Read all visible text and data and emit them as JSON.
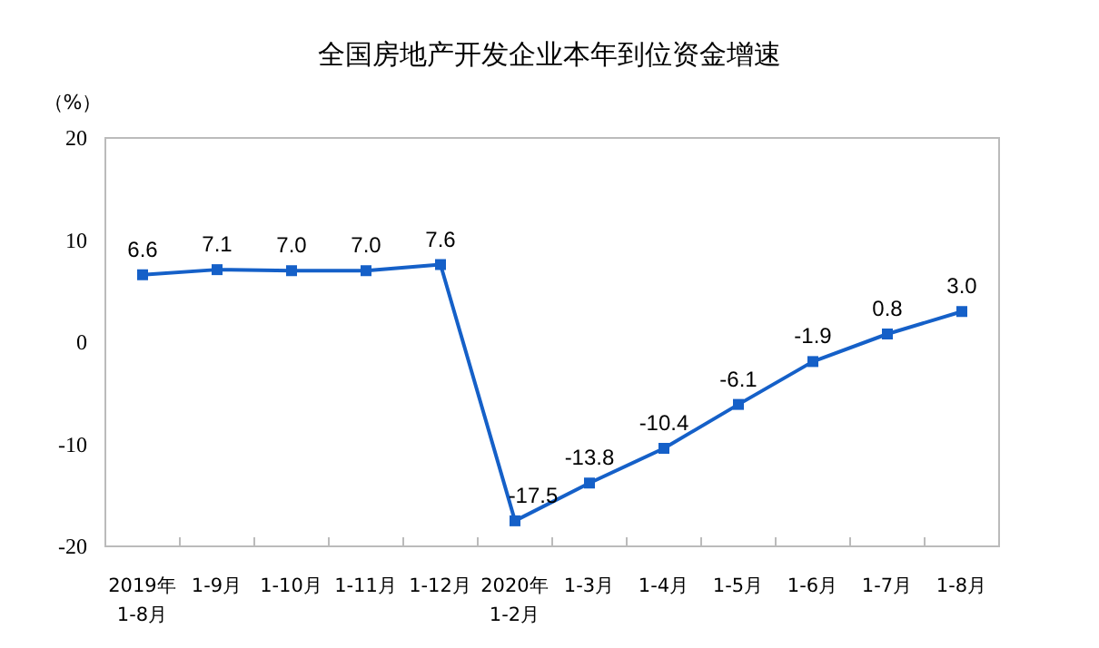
{
  "chart_data": {
    "type": "line",
    "title": "全国房地产开发企业本年到位资金增速",
    "ylabel": "（%）",
    "categories": [
      "2019年\n1-8月",
      "1-9月",
      "1-10月",
      "1-11月",
      "1-12月",
      "2020年\n1-2月",
      "1-3月",
      "1-4月",
      "1-5月",
      "1-6月",
      "1-7月",
      "1-8月"
    ],
    "series": [
      {
        "color": "#1560c8",
        "values": [
          6.6,
          7.1,
          7.0,
          7.0,
          7.6,
          -17.5,
          -13.8,
          -10.4,
          -6.1,
          -1.9,
          0.8,
          3.0
        ],
        "value_labels": [
          "6.6",
          "7.1",
          "7.0",
          "7.0",
          "7.6",
          "-17.5",
          "-13.8",
          "-10.4",
          "-6.1",
          "-1.9",
          "0.8",
          "3.0"
        ]
      }
    ],
    "ylim": [
      -20,
      20
    ],
    "yticks": [
      -20,
      -10,
      0,
      10,
      20
    ],
    "marker": "square",
    "grid": false
  }
}
